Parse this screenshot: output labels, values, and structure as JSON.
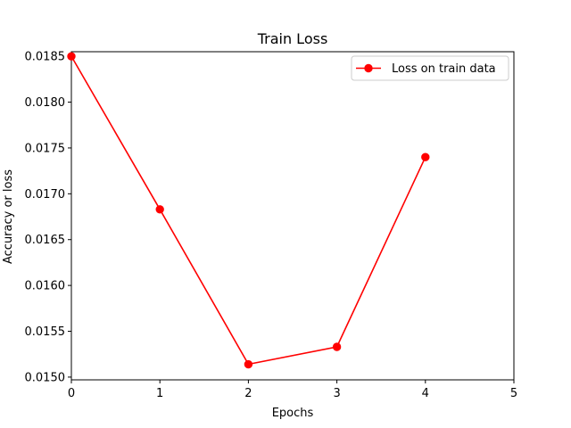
{
  "chart_data": {
    "type": "line",
    "title": "Train Loss",
    "xlabel": "Epochs",
    "ylabel": "Accuracy or loss",
    "xlim": [
      0,
      5
    ],
    "ylim": [
      0.01497,
      0.01855
    ],
    "xticks": [
      0,
      1,
      2,
      3,
      4,
      5
    ],
    "yticks": [
      0.015,
      0.0155,
      0.016,
      0.0165,
      0.017,
      0.0175,
      0.018,
      0.0185
    ],
    "ytick_labels": [
      "0.0150",
      "0.0155",
      "0.0160",
      "0.0165",
      "0.0170",
      "0.0175",
      "0.0180",
      "0.0185"
    ],
    "grid": false,
    "legend_position": "top-right",
    "series": [
      {
        "name": "Loss on train data",
        "color": "#ff0000",
        "marker": "circle",
        "x": [
          0,
          1,
          2,
          3,
          4
        ],
        "y": [
          0.0185,
          0.01683,
          0.01514,
          0.01533,
          0.0174
        ]
      }
    ]
  }
}
